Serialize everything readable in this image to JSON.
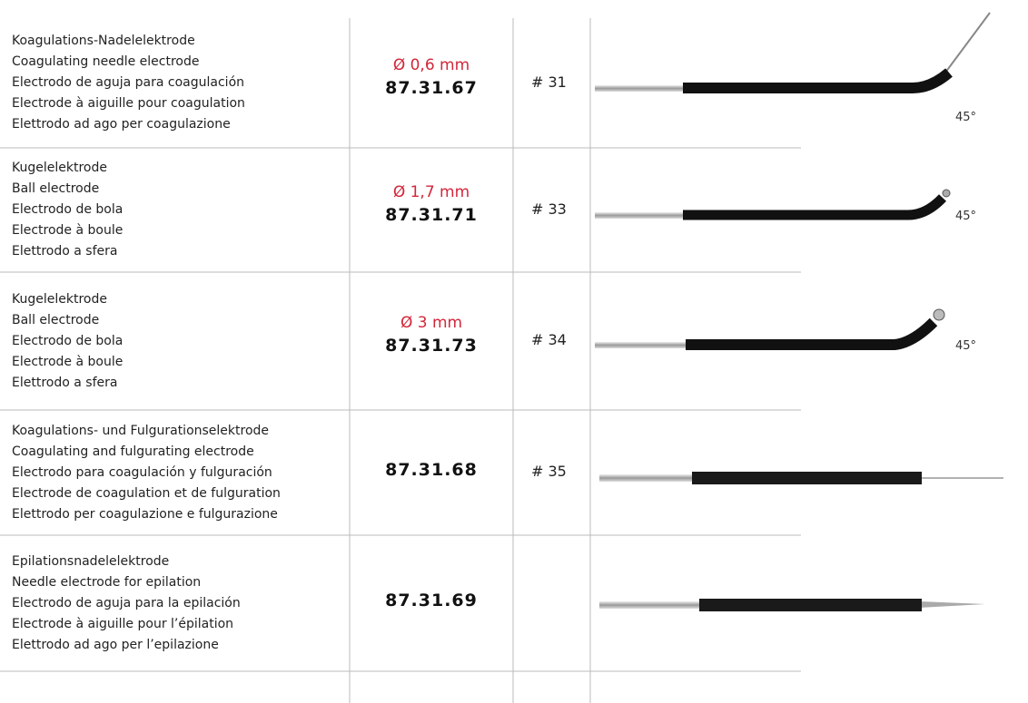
{
  "rows": [
    {
      "description": [
        "Koagulations-Nadelelektrode",
        "Coagulating needle electrode",
        "Electrodo de aguja para coagulación",
        "Electrode à aiguille pour coagulation",
        "Elettrodo ad ago per coagulazione"
      ],
      "diameter": "Ø 0,6 mm",
      "code": "87.31.67",
      "ref": "# 31",
      "angle": "45°"
    },
    {
      "description": [
        "Kugelelektrode",
        "Ball electrode",
        "Electrodo de bola",
        "Electrode à boule",
        "Elettrodo a sfera"
      ],
      "diameter": "Ø 1,7 mm",
      "code": "87.31.71",
      "ref": "# 33",
      "angle": "45°"
    },
    {
      "description": [
        "Kugelelektrode",
        "Ball electrode",
        "Electrodo de bola",
        "Electrode à boule",
        "Elettrodo a sfera"
      ],
      "diameter": "Ø 3 mm",
      "code": "87.31.73",
      "ref": "# 34",
      "angle": "45°"
    },
    {
      "description": [
        "Koagulations- und Fulgurationselektrode",
        "Coagulating and fulgurating electrode",
        "Electrodo para coagulación y fulguración",
        "Electrode de coagulation et de fulguration",
        "Elettrodo per coagulazione e fulgurazione"
      ],
      "code": "87.31.68",
      "ref": "# 35"
    },
    {
      "description": [
        "Epilationsnadelelektrode",
        "Needle electrode for epilation",
        "Electrodo de aguja para la epilación",
        "Electrode à aiguille pour l’épilation",
        "Elettrodo ad ago per l’epilazione"
      ],
      "code": "87.31.69"
    }
  ]
}
